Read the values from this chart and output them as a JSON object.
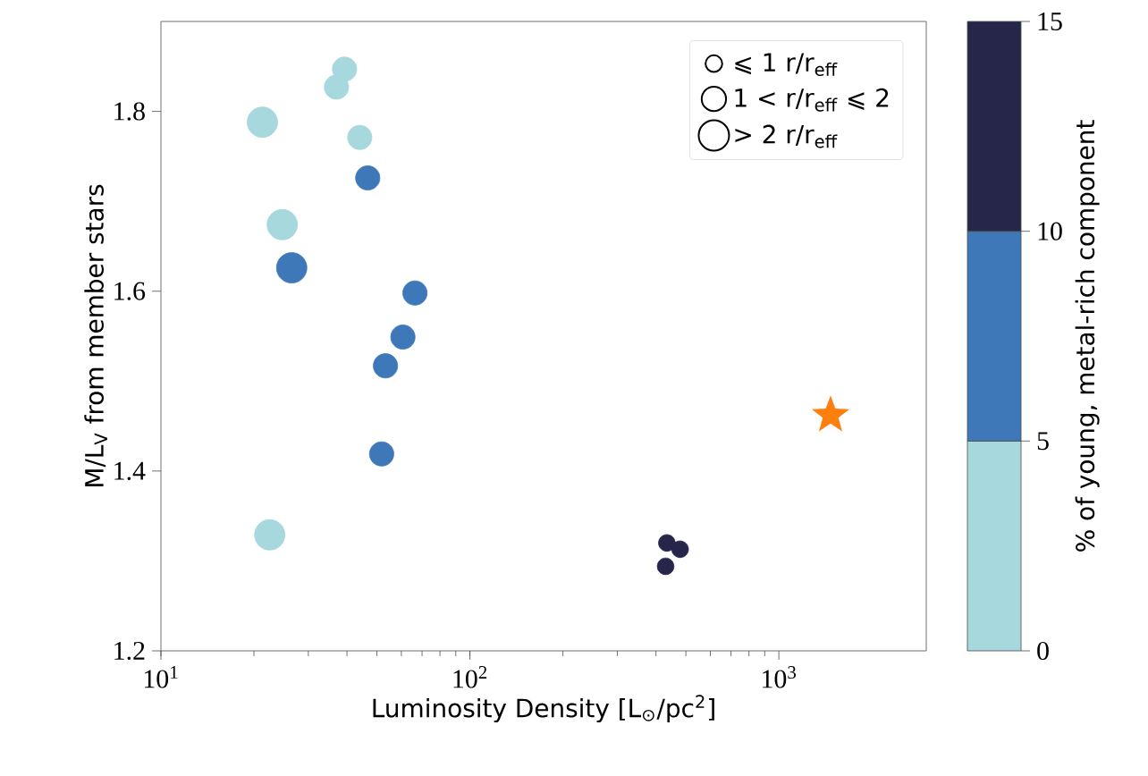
{
  "chart_data": {
    "type": "bubble",
    "xlabel": "Luminosity Density [L$_{⊙}$/pc$^{2}$]",
    "ylabel": "M/L$_{V}$ from member stars",
    "clabel": "% of young, metal-rich component",
    "log": "x",
    "xlim": [
      10,
      3000
    ],
    "xticks": [
      {
        "value": 10,
        "label": "10$^{1}$"
      },
      {
        "value": 100,
        "label": "10$^{2}$"
      },
      {
        "value": 1000,
        "label": "10$^{3}$"
      }
    ],
    "ylim": [
      1.2,
      1.9
    ],
    "yticks": [
      1.2,
      1.4,
      1.6,
      1.8
    ],
    "clim": [
      0,
      15
    ],
    "cticks": [
      0,
      5,
      10,
      15
    ],
    "size_legend": [
      {
        "value": 0.3,
        "label": "⩽ 1 r/r$_{eff}$"
      },
      {
        "value": 0.64,
        "label": "1 < r/r$_{eff}$ ⩽ 2"
      },
      {
        "value": 1,
        "label": "> 2 r/r$_{eff}$"
      }
    ],
    "series": [
      {
        "marker": "circle",
        "x": [
          21.3,
          39.3,
          37,
          44,
          46.7,
          24.7,
          26.5,
          66.4,
          60.7,
          53.3,
          51.8,
          22.5,
          434,
          479,
          430
        ],
        "values": [
          1.788,
          1.847,
          1.827,
          1.771,
          1.726,
          1.674,
          1.626,
          1.598,
          1.549,
          1.517,
          1.419,
          1.329,
          1.32,
          1.313,
          1.294
        ],
        "sizes": [
          1,
          0.64,
          0.64,
          0.64,
          0.64,
          1,
          1,
          0.64,
          0.64,
          0.64,
          0.64,
          1,
          0.3,
          0.3,
          0.3
        ],
        "colors": [
          "#a6d8dd",
          "#a6d8dd",
          "#a6d8dd",
          "#a6d8dd",
          "#3f78b8",
          "#a6d8dd",
          "#3f78b8",
          "#3f78b8",
          "#3f78b8",
          "#3f78b8",
          "#3f78b8",
          "#a6d8dd",
          "#26264b",
          "#26264b",
          "#26264b"
        ]
      },
      {
        "type": "scatter",
        "marker": "star",
        "color": "#ff7f0e",
        "x": [
          1470
        ],
        "values": [
          1.462
        ]
      }
    ]
  }
}
